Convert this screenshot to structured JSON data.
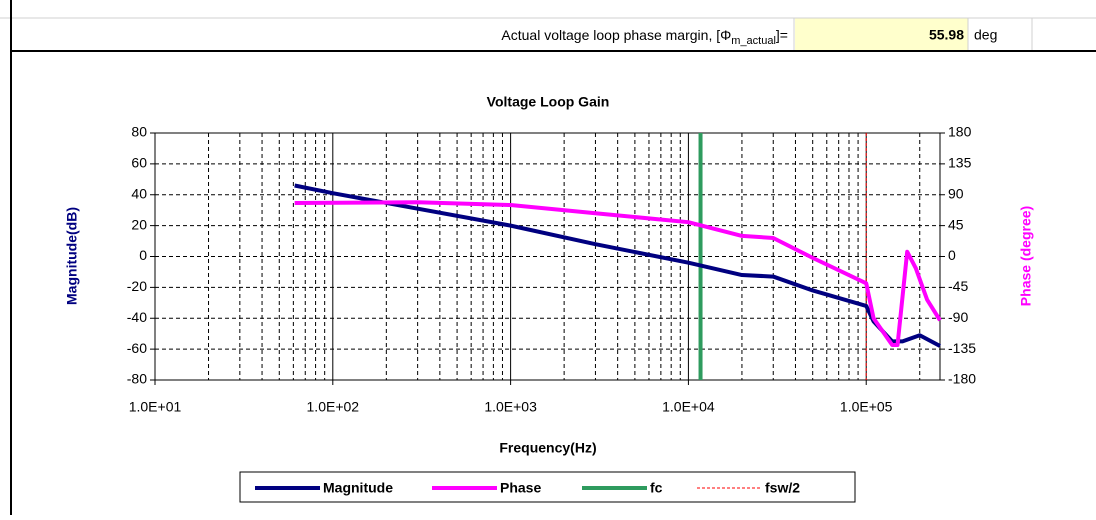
{
  "header": {
    "label": "Actual voltage loop phase margin, [Φ",
    "label_sub": "m_actual",
    "label_tail": "]=",
    "value": 55.98,
    "unit": "deg"
  },
  "chart_data": {
    "type": "line",
    "title": "Voltage Loop Gain",
    "xlabel": "Frequency(Hz)",
    "ylabel": "Magnitude(dB)",
    "y2label": "Phase (degree)",
    "xscale": "log",
    "xlim": [
      10,
      260000
    ],
    "xticks": [
      {
        "value": 10,
        "label": "1.0E+01"
      },
      {
        "value": 100,
        "label": "1.0E+02"
      },
      {
        "value": 1000,
        "label": "1.0E+03"
      },
      {
        "value": 10000,
        "label": "1.0E+04"
      },
      {
        "value": 100000,
        "label": "1.0E+05"
      }
    ],
    "ylim": [
      -80,
      80
    ],
    "yticks": [
      -80,
      -60,
      -40,
      -20,
      0,
      20,
      40,
      60,
      80
    ],
    "y2lim": [
      -180,
      180
    ],
    "y2ticks": [
      -180,
      -135,
      -90,
      -45,
      0,
      45,
      90,
      135,
      180
    ],
    "grid": true,
    "minor_grid": true,
    "legend": "bottom",
    "series": [
      {
        "name": "Magnitude",
        "color": "#000080",
        "x": [
          61,
          100,
          1000,
          3000,
          10000,
          20000,
          30000,
          50000,
          100000,
          110000,
          140000,
          160000,
          200000,
          260000
        ],
        "values": [
          46,
          41,
          20,
          8,
          -4,
          -12,
          -13,
          -22,
          -32,
          -42,
          -55,
          -55,
          -51,
          -58
        ]
      },
      {
        "name": "Phase",
        "color": "#ff00ff",
        "axis": "y2",
        "x": [
          61,
          300,
          1000,
          3000,
          10000,
          20000,
          30000,
          50000,
          100000,
          110000,
          140000,
          150000,
          170000,
          190000,
          220000,
          260000
        ],
        "values": [
          78,
          79,
          75,
          63,
          50,
          30,
          27,
          -2,
          -39,
          -90,
          -129,
          -129,
          7,
          -17,
          -63,
          -93
        ]
      }
    ],
    "markers": [
      {
        "name": "fc",
        "color": "#2e9b5e",
        "x": 11700
      },
      {
        "name": "fsw/2",
        "color": "#ff0000",
        "x": 100000,
        "dashed": true
      }
    ]
  }
}
